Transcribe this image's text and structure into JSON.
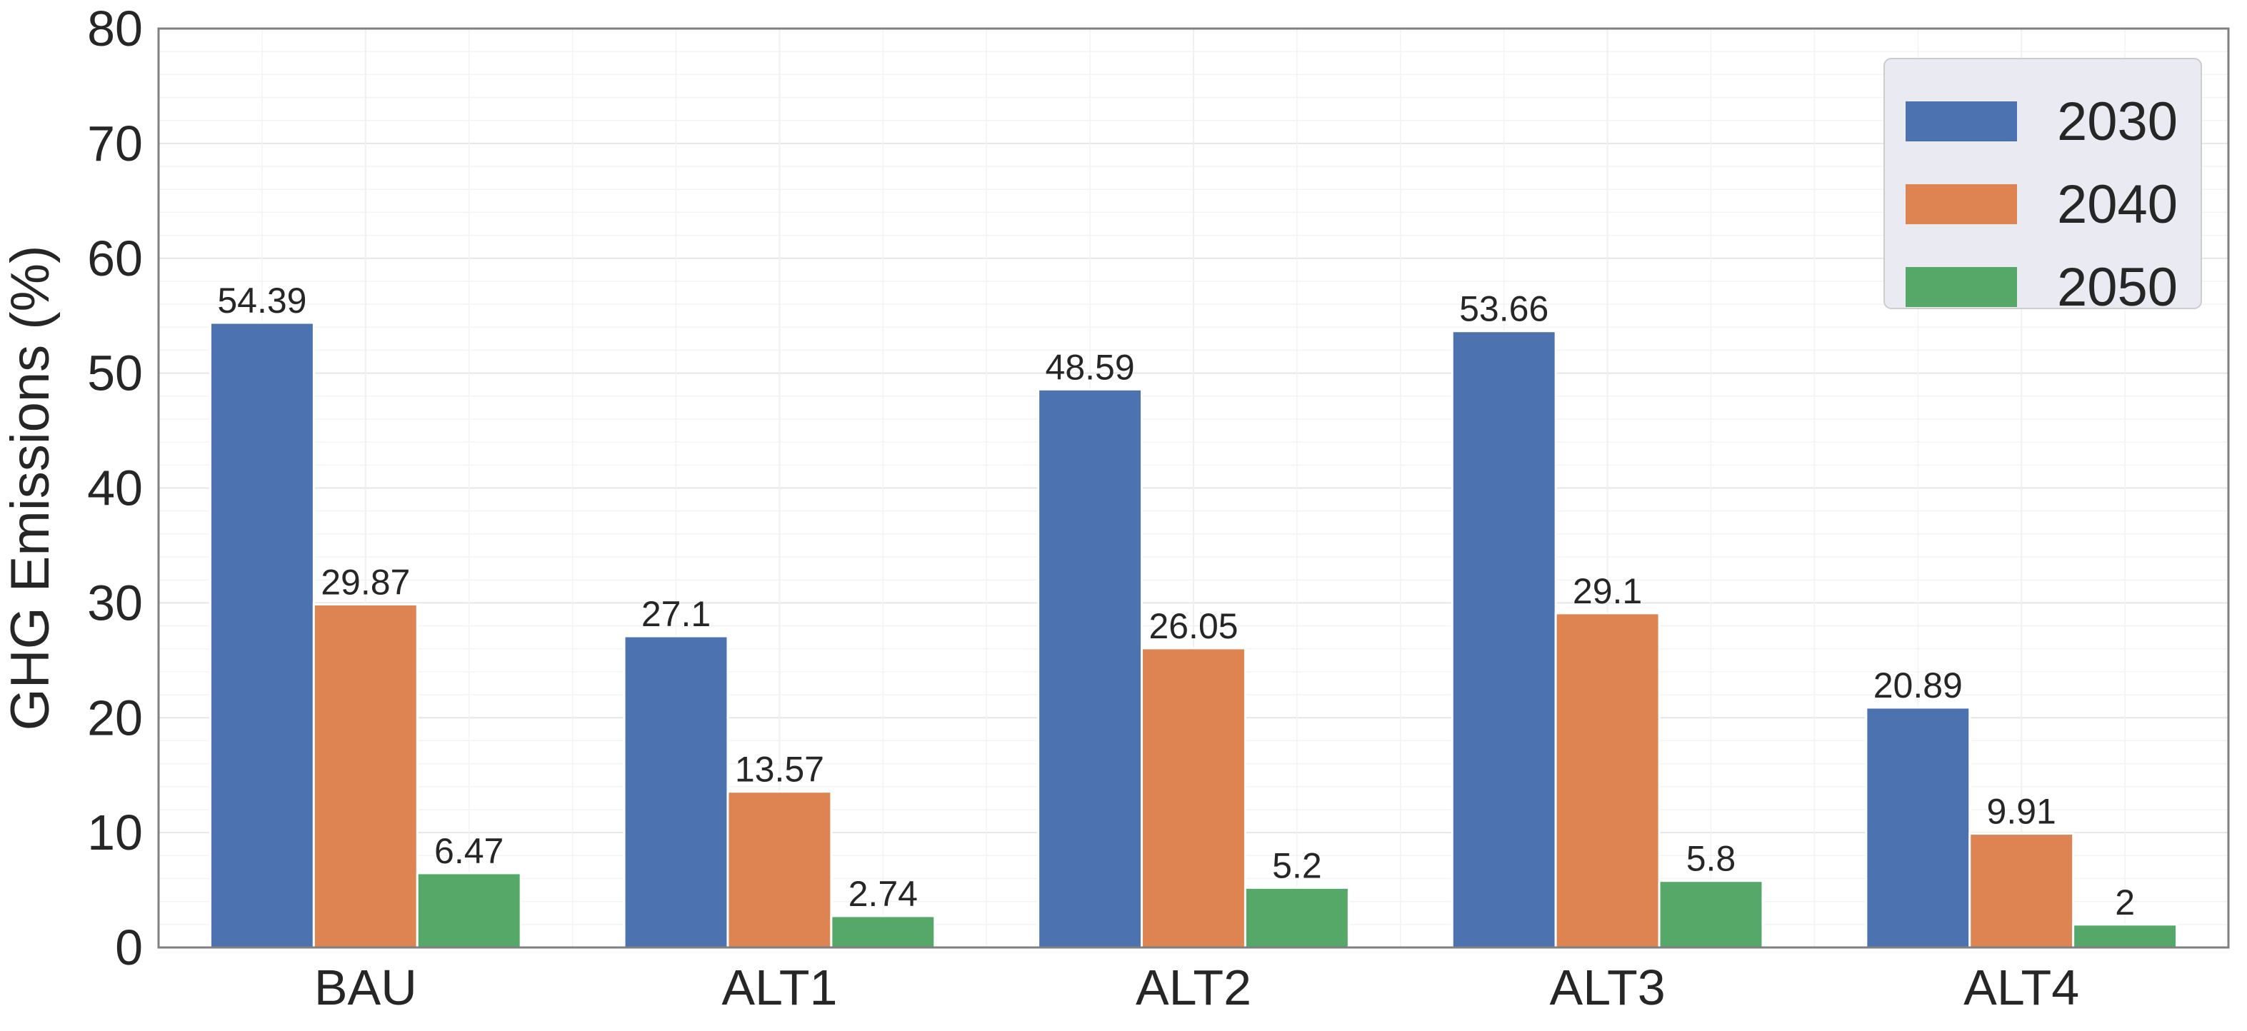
{
  "chart_data": {
    "type": "bar",
    "title": "",
    "xlabel": "",
    "ylabel": "GHG Emissions (%)",
    "ylim": [
      0,
      80
    ],
    "yticks": [
      0,
      10,
      20,
      30,
      40,
      50,
      60,
      70,
      80
    ],
    "categories": [
      "BAU",
      "ALT1",
      "ALT2",
      "ALT3",
      "ALT4"
    ],
    "series": [
      {
        "name": "2030",
        "color": "#4c72b0",
        "values": [
          54.39,
          27.1,
          48.59,
          53.66,
          20.89
        ],
        "labels": [
          "54.39",
          "27.1",
          "48.59",
          "53.66",
          "20.89"
        ]
      },
      {
        "name": "2040",
        "color": "#dd8452",
        "values": [
          29.87,
          13.57,
          26.05,
          29.1,
          9.91
        ],
        "labels": [
          "29.87",
          "13.57",
          "26.05",
          "29.1",
          "9.91"
        ]
      },
      {
        "name": "2050",
        "color": "#55a868",
        "values": [
          6.47,
          2.74,
          5.2,
          5.8,
          2
        ],
        "labels": [
          "6.47",
          "2.74",
          "5.2",
          "5.8",
          "2"
        ]
      }
    ],
    "grid": true,
    "minor_grid": true,
    "legend_position": "top-right"
  }
}
